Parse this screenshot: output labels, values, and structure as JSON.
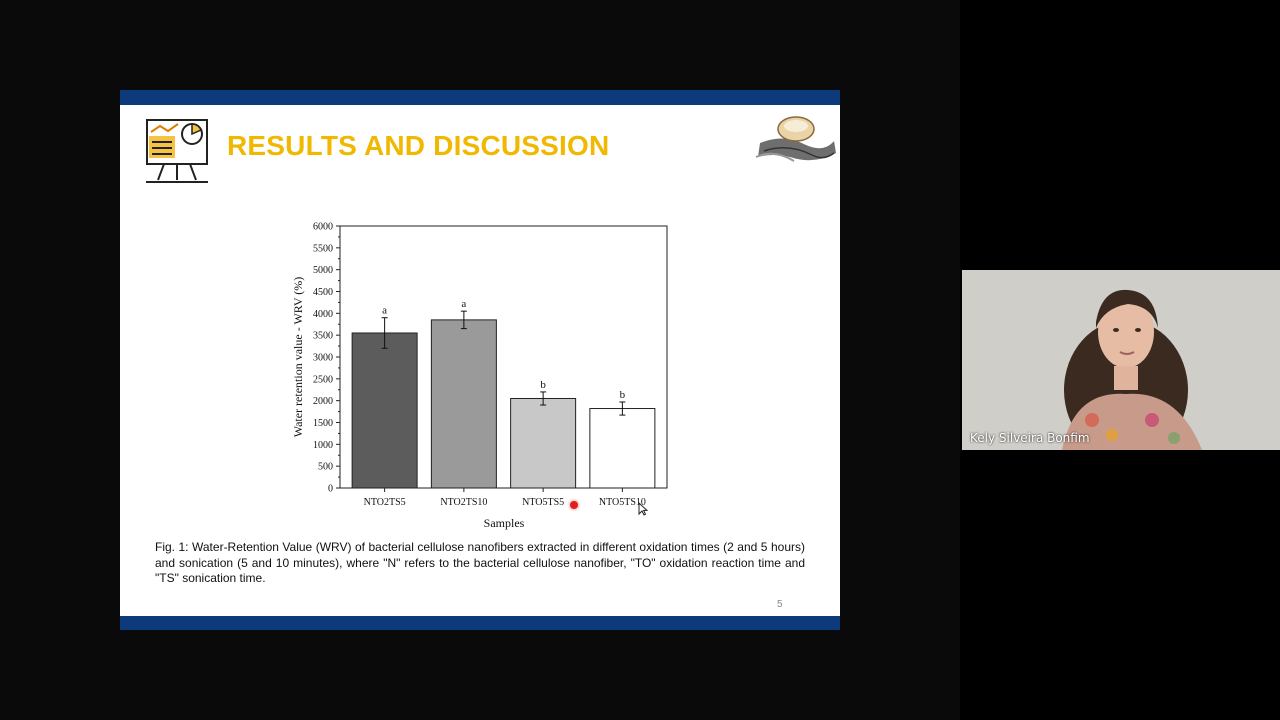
{
  "slide": {
    "title": "RESULTS AND DISCUSSION",
    "page_number": "5",
    "caption": "Fig. 1: Water-Retention Value (WRV) of bacterial cellulose nanofibers extracted in different oxidation times (2 and 5 hours) and sonication (5 and 10 minutes), where \"N\" refers to the bacterial cellulose nanofiber, \"TO\" oxidation reaction time and \"TS\" sonication time.",
    "left_logo_icon": "chart-board-icon",
    "right_logo_icon": "cellulose-illustration-icon"
  },
  "chart_data": {
    "type": "bar",
    "categories": [
      "NTO2TS5",
      "NTO2TS10",
      "NTO5TS5",
      "NTO5TS10"
    ],
    "values": [
      3550,
      3850,
      2050,
      1820
    ],
    "errors": [
      350,
      200,
      150,
      150
    ],
    "significance_letters": [
      "a",
      "a",
      "b",
      "b"
    ],
    "bar_colors": [
      "#5c5c5c",
      "#9a9a9a",
      "#c8c8c8",
      "#ffffff"
    ],
    "xlabel": "Samples",
    "ylabel": "Water retention value - WRV (%)",
    "ylim": [
      0,
      6000
    ],
    "yticks": [
      0,
      500,
      1000,
      1500,
      2000,
      2500,
      3000,
      3500,
      4000,
      4500,
      5000,
      5500,
      6000
    ],
    "grid": false
  },
  "video": {
    "participant_name": "Kely Silveira Bonfim"
  },
  "colors": {
    "slide_bar": "#0d3a7a",
    "title": "#f0b800",
    "background": "#0a0a0a"
  }
}
